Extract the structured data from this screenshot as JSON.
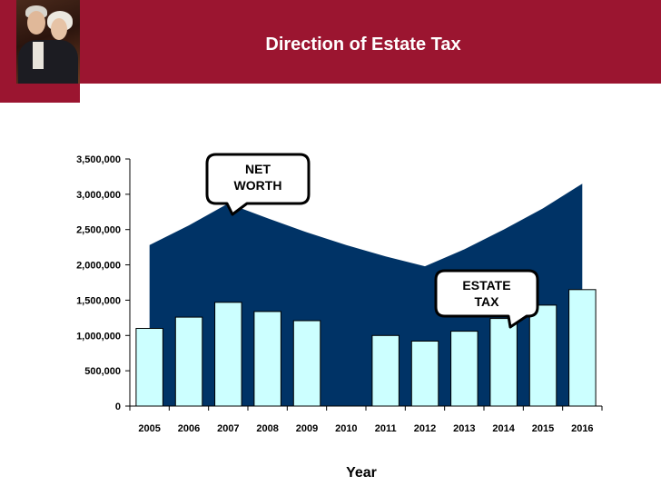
{
  "title": "Direction of Estate Tax",
  "chart_data": {
    "type": "bar",
    "categories": [
      "2005",
      "2006",
      "2007",
      "2008",
      "2009",
      "2010",
      "2011",
      "2012",
      "2013",
      "2014",
      "2015",
      "2016"
    ],
    "series": [
      {
        "name": "ESTATE TAX",
        "kind": "bar",
        "values": [
          1100000,
          1260000,
          1470000,
          1340000,
          1210000,
          0,
          1000000,
          920000,
          1060000,
          1240000,
          1430000,
          1650000
        ]
      },
      {
        "name": "NET WORTH",
        "kind": "area",
        "values": [
          2280000,
          2560000,
          2870000,
          2660000,
          2460000,
          2280000,
          2120000,
          1980000,
          2220000,
          2500000,
          2800000,
          3150000
        ]
      }
    ],
    "xlabel": "Year",
    "ylabel": "",
    "ylim": [
      0,
      3500000
    ],
    "yticks": [
      "0",
      "500,000",
      "1,000,000",
      "1,500,000",
      "2,000,000",
      "2,500,000",
      "3,000,000",
      "3,500,000"
    ],
    "callouts": [
      {
        "series": "NET WORTH",
        "text": [
          "NET",
          "WORTH"
        ]
      },
      {
        "series": "ESTATE TAX",
        "text": [
          "ESTATE",
          "TAX"
        ]
      }
    ],
    "colors": {
      "area": "#003366",
      "bar": "#ccffff",
      "bar_stroke": "#000000"
    }
  }
}
